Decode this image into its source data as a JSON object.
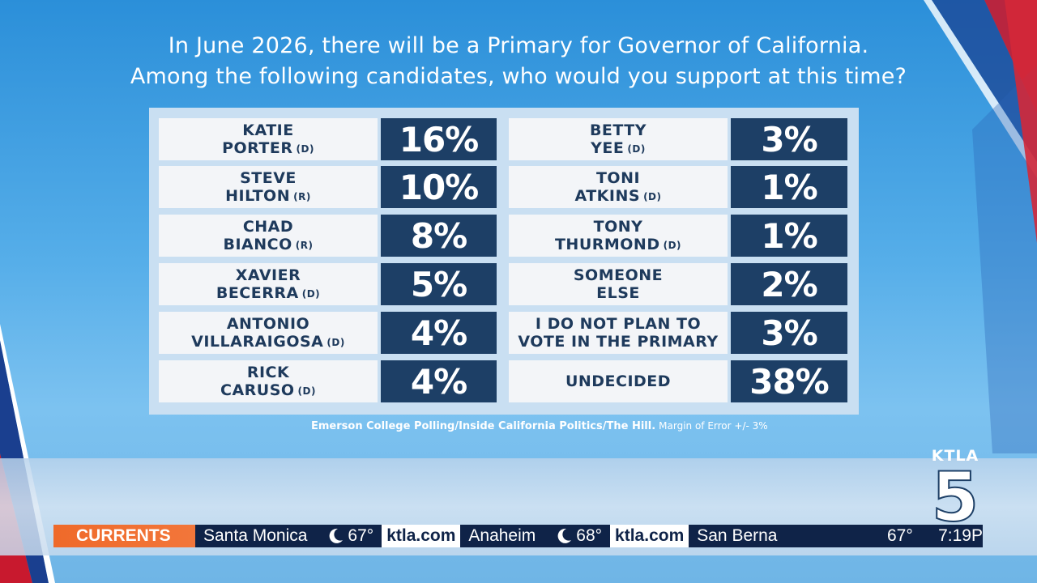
{
  "headline": {
    "line1": "In June 2026, there will be a Primary for Governor of California.",
    "line2": "Among the following candidates, who would you support at this time?"
  },
  "left_column": [
    {
      "line1": "KATIE",
      "line2": "PORTER",
      "party": "(D)",
      "pct": "16%"
    },
    {
      "line1": "STEVE",
      "line2": "HILTON",
      "party": "(R)",
      "pct": "10%"
    },
    {
      "line1": "CHAD",
      "line2": "BIANCO",
      "party": "(R)",
      "pct": "8%"
    },
    {
      "line1": "XAVIER",
      "line2": "BECERRA",
      "party": "(D)",
      "pct": "5%"
    },
    {
      "line1": "ANTONIO",
      "line2": "VILLARAIGOSA",
      "party": "(D)",
      "pct": "4%"
    },
    {
      "line1": "RICK",
      "line2": "CARUSO",
      "party": "(D)",
      "pct": "4%"
    }
  ],
  "right_column": [
    {
      "line1": "BETTY",
      "line2": "YEE",
      "party": "(D)",
      "pct": "3%"
    },
    {
      "line1": "TONI",
      "line2": "ATKINS",
      "party": "(D)",
      "pct": "1%"
    },
    {
      "line1": "TONY",
      "line2": "THURMOND",
      "party": "(D)",
      "pct": "1%"
    },
    {
      "line1": "SOMEONE",
      "line2": "ELSE",
      "party": "",
      "pct": "2%"
    },
    {
      "line1": "I DO NOT PLAN TO",
      "line2": "VOTE IN THE PRIMARY",
      "party": "",
      "pct": "3%"
    },
    {
      "line1": "UNDECIDED",
      "line2": "",
      "party": "",
      "pct": "38%"
    }
  ],
  "source": {
    "text": "Emerson College Polling/Inside California Politics/The Hill.",
    "moe": "Margin of Error +/- 3%"
  },
  "logo": {
    "station": "KTLA",
    "channel": "5"
  },
  "ticker": {
    "label": "CURRENTS",
    "items": [
      {
        "city": "Santa Monica",
        "icon": "moon-icon",
        "temp": "67°",
        "site": "ktla.com"
      },
      {
        "city": "Anaheim",
        "icon": "moon-icon",
        "temp": "68°",
        "site": "ktla.com"
      },
      {
        "city": "San Berna",
        "icon": "",
        "temp": "",
        "site": ""
      }
    ],
    "clock_temp": "67°",
    "clock_time": "7:19P"
  },
  "colors": {
    "navy": "#1d3f66",
    "panel": "#c9dff2",
    "cell": "#f3f5f8",
    "currents_orange": "#ef6a2a",
    "ticker_bg": "#0f2348"
  }
}
